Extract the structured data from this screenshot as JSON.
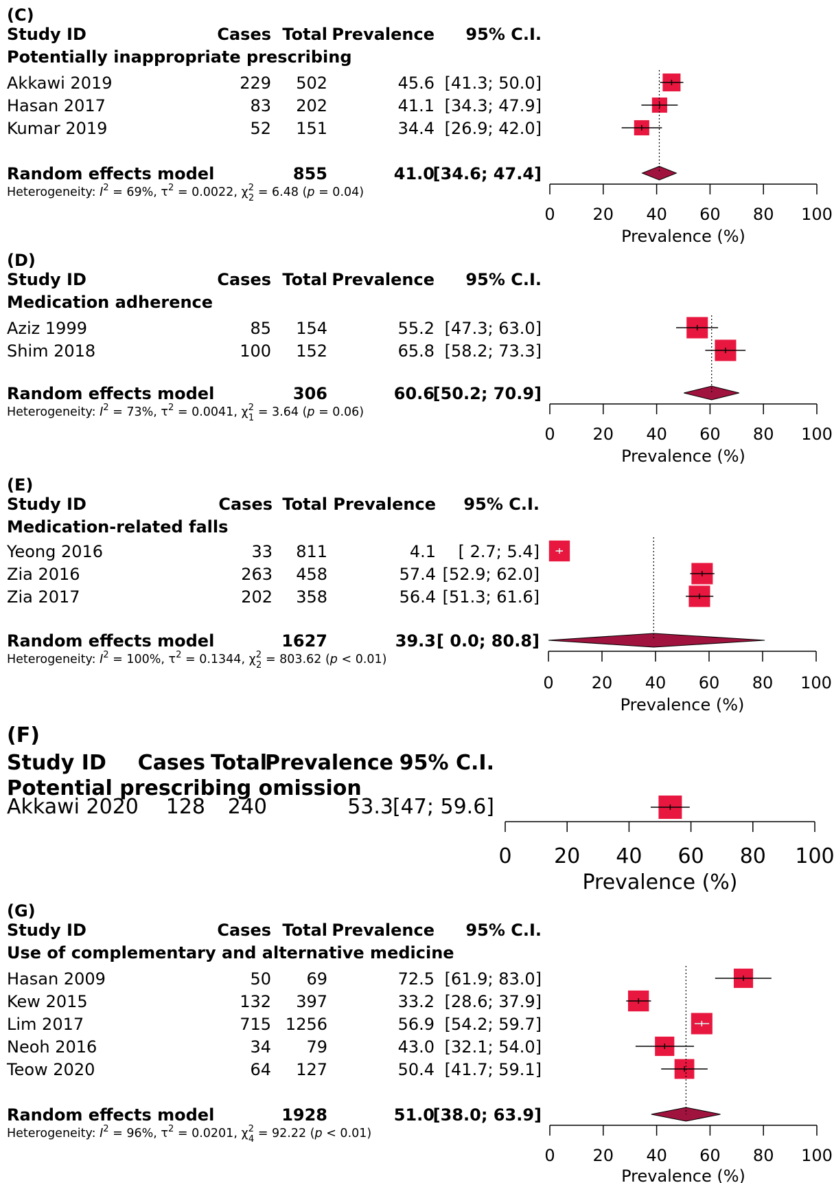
{
  "chart_data": [
    {
      "type": "forest",
      "panel_label": "(C)",
      "columns": [
        "Study ID",
        "Cases",
        "Total",
        "Prevalence",
        "95% C.I."
      ],
      "subgroup": "Potentially inappropriate prescribing",
      "studies": [
        {
          "name": "Akkawi 2019",
          "cases": "229",
          "total": "502",
          "prev": 45.6,
          "prev_text": "45.6",
          "lo": 41.3,
          "hi": 50.0,
          "ci_text": "[41.3; 50.0]",
          "weight": 1.0,
          "marker_text_color": "#000000"
        },
        {
          "name": "Hasan 2017",
          "cases": "83",
          "total": "202",
          "prev": 41.1,
          "prev_text": "41.1",
          "lo": 34.3,
          "hi": 47.9,
          "ci_text": "[34.3; 47.9]",
          "weight": 0.85,
          "marker_text_color": "#000000"
        },
        {
          "name": "Kumar 2019",
          "cases": "52",
          "total": "151",
          "prev": 34.4,
          "prev_text": "34.4",
          "lo": 26.9,
          "hi": 42.0,
          "ci_text": "[26.9; 42.0]",
          "weight": 0.85,
          "marker_text_color": "#000000"
        }
      ],
      "pooled": {
        "label": "Random effects model",
        "total": "855",
        "prev": 41.0,
        "prev_text": "41.0",
        "lo": 34.6,
        "hi": 47.4,
        "ci_text": "[34.6; 47.4]"
      },
      "heterogeneity": {
        "I2": "69%",
        "tau2": "0.0022",
        "chi_df": "2",
        "chi2": "6.48",
        "p": "= 0.04"
      },
      "xlim": [
        0,
        100
      ],
      "ticks": [
        "0",
        "20",
        "40",
        "60",
        "80",
        "100"
      ],
      "xlabel": "Prevalence (%)"
    },
    {
      "type": "forest",
      "panel_label": "(D)",
      "columns": [
        "Study ID",
        "Cases",
        "Total",
        "Prevalence",
        "95% C.I."
      ],
      "subgroup": "Medication adherence",
      "studies": [
        {
          "name": "Aziz 1999",
          "cases": "85",
          "total": "154",
          "prev": 55.2,
          "prev_text": "55.2",
          "lo": 47.3,
          "hi": 63.0,
          "ci_text": "[47.3; 63.0]",
          "weight": 0.97,
          "marker_text_color": "#000000"
        },
        {
          "name": "Shim 2018",
          "cases": "100",
          "total": "152",
          "prev": 65.8,
          "prev_text": "65.8",
          "lo": 58.2,
          "hi": 73.3,
          "ci_text": "[58.2; 73.3]",
          "weight": 0.97,
          "marker_text_color": "#000000"
        }
      ],
      "pooled": {
        "label": "Random effects model",
        "total": "306",
        "prev": 60.6,
        "prev_text": "60.6",
        "lo": 50.2,
        "hi": 70.9,
        "ci_text": "[50.2; 70.9]"
      },
      "heterogeneity": {
        "I2": "73%",
        "tau2": "0.0041",
        "chi_df": "1",
        "chi2": "3.64",
        "p": "= 0.06"
      },
      "xlim": [
        0,
        100
      ],
      "ticks": [
        "0",
        "20",
        "40",
        "60",
        "80",
        "100"
      ],
      "xlabel": "Prevalence (%)"
    },
    {
      "type": "forest",
      "panel_label": "(E)",
      "columns": [
        "Study ID",
        "Cases",
        "Total",
        "Prevalence",
        "95% C.I."
      ],
      "subgroup": "Medication-related falls",
      "studies": [
        {
          "name": "Yeong 2016",
          "cases": "33",
          "total": "811",
          "prev": 4.1,
          "prev_text": "4.1",
          "lo": 2.7,
          "hi": 5.4,
          "ci_text": "[ 2.7; 5.4]",
          "weight": 0.95,
          "marker_text_color": "#ffffff"
        },
        {
          "name": "Zia 2016",
          "cases": "263",
          "total": "458",
          "prev": 57.4,
          "prev_text": "57.4",
          "lo": 52.9,
          "hi": 62.0,
          "ci_text": "[52.9; 62.0]",
          "weight": 0.97,
          "marker_text_color": "#000000"
        },
        {
          "name": "Zia 2017",
          "cases": "202",
          "total": "358",
          "prev": 56.4,
          "prev_text": "56.4",
          "lo": 51.3,
          "hi": 61.6,
          "ci_text": "[51.3; 61.6]",
          "weight": 0.97,
          "marker_text_color": "#000000"
        }
      ],
      "pooled": {
        "label": "Random effects model",
        "total": "1627",
        "prev": 39.3,
        "prev_text": "39.3",
        "lo": 0.0,
        "hi": 80.8,
        "ci_text": "[ 0.0; 80.8]"
      },
      "heterogeneity": {
        "I2": "100%",
        "tau2": "0.1344",
        "chi_df": "2",
        "chi2": "803.62",
        "p": "< 0.01"
      },
      "xlim": [
        0,
        100
      ],
      "ticks": [
        "0",
        "20",
        "40",
        "60",
        "80",
        "100"
      ],
      "xlabel": "Prevalence (%)"
    },
    {
      "type": "forest",
      "panel_label": "(F)",
      "columns": [
        "Study ID",
        "Cases",
        "Total",
        "Prevalence",
        "95% C.I."
      ],
      "subgroup": "Potential prescribing omission",
      "studies": [
        {
          "name": "Akkawi 2020",
          "cases": "128",
          "total": "240",
          "prev": 53.3,
          "prev_text": "53.3",
          "lo": 47.0,
          "hi": 59.6,
          "ci_text": "[47; 59.6]",
          "weight": 1.0,
          "marker_text_color": "#000000"
        }
      ],
      "xlim": [
        0,
        100
      ],
      "ticks": [
        "0",
        "20",
        "40",
        "60",
        "80",
        "100"
      ],
      "xlabel": "Prevalence (%)"
    },
    {
      "type": "forest",
      "panel_label": "(G)",
      "columns": [
        "Study ID",
        "Cases",
        "Total",
        "Prevalence",
        "95% C.I."
      ],
      "subgroup": "Use of complementary and alternative medicine",
      "studies": [
        {
          "name": "Hasan 2009",
          "cases": "50",
          "total": "69",
          "prev": 72.5,
          "prev_text": "72.5",
          "lo": 61.9,
          "hi": 83.0,
          "ci_text": "[61.9; 83.0]",
          "weight": 0.88,
          "marker_text_color": "#000000"
        },
        {
          "name": "Kew 2015",
          "cases": "132",
          "total": "397",
          "prev": 33.2,
          "prev_text": "33.2",
          "lo": 28.6,
          "hi": 37.9,
          "ci_text": "[28.6; 37.9]",
          "weight": 0.95,
          "marker_text_color": "#000000"
        },
        {
          "name": "Lim 2017",
          "cases": "715",
          "total": "1256",
          "prev": 56.9,
          "prev_text": "56.9",
          "lo": 54.2,
          "hi": 59.7,
          "ci_text": "[54.2; 59.7]",
          "weight": 0.97,
          "marker_text_color": "#ffffff"
        },
        {
          "name": "Neoh 2016",
          "cases": "34",
          "total": "79",
          "prev": 43.0,
          "prev_text": "43.0",
          "lo": 32.1,
          "hi": 54.0,
          "ci_text": "[32.1; 54.0]",
          "weight": 0.88,
          "marker_text_color": "#000000"
        },
        {
          "name": "Teow 2020",
          "cases": "64",
          "total": "127",
          "prev": 50.4,
          "prev_text": "50.4",
          "lo": 41.7,
          "hi": 59.1,
          "ci_text": "[41.7; 59.1]",
          "weight": 0.9,
          "marker_text_color": "#000000"
        }
      ],
      "pooled": {
        "label": "Random effects model",
        "total": "1928",
        "prev": 51.0,
        "prev_text": "51.0",
        "lo": 38.0,
        "hi": 63.9,
        "ci_text": "[38.0; 63.9]"
      },
      "heterogeneity": {
        "I2": "96%",
        "tau2": "0.0201",
        "chi_df": "4",
        "chi2": "92.22",
        "p": "< 0.01"
      },
      "xlim": [
        0,
        100
      ],
      "ticks": [
        "0",
        "20",
        "40",
        "60",
        "80",
        "100"
      ],
      "xlabel": "Prevalence (%)"
    }
  ],
  "colors": {
    "study_marker": "#e8173f",
    "pooled_diamond": "#a0133f",
    "lines": "#000000"
  }
}
